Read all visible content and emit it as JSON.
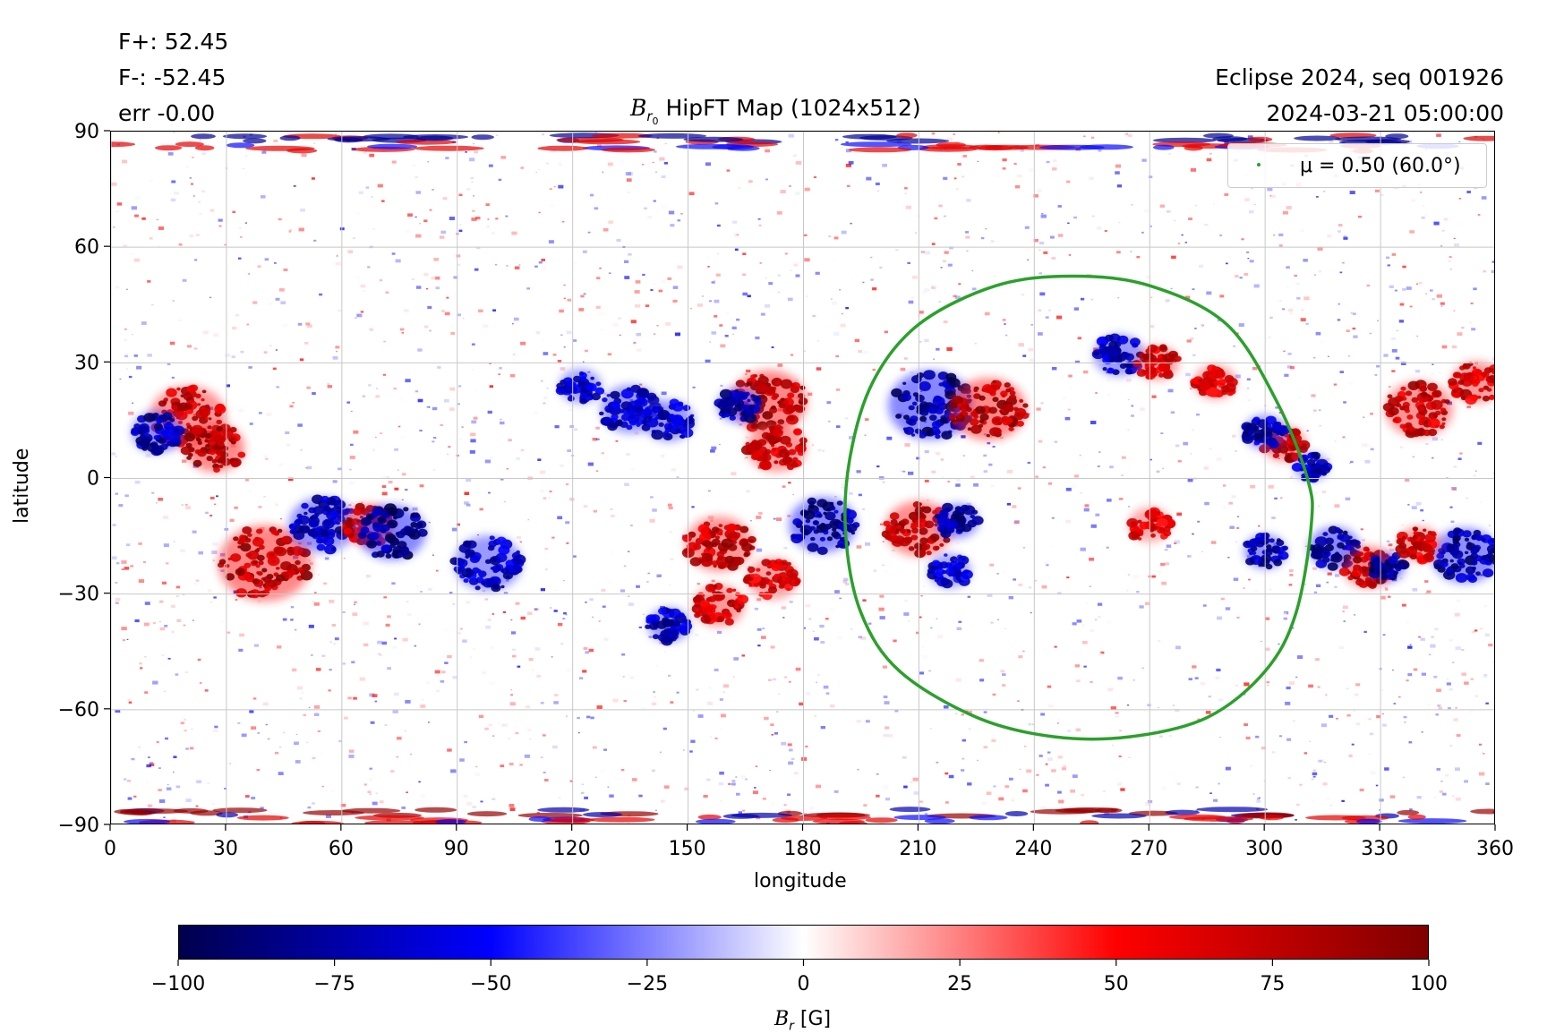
{
  "header": {
    "flux_pos": "F+: 52.45",
    "flux_neg": "F-: -52.45",
    "flux_err": "err -0.00",
    "title_prefix": "B",
    "title_sub": "r",
    "title_subsub": "0",
    "title_rest": " HipFT Map (1024x512)",
    "run_info": "Eclipse 2024, seq 001926",
    "timestamp": "2024-03-21 05:00:00"
  },
  "legend": {
    "label": "μ = 0.50 (60.0°)",
    "color": "#2ca02c"
  },
  "colors": {
    "positive": "#cc0000",
    "negative": "#0000b0",
    "contour": "#2ca02c",
    "grid": "#c8c8c8"
  },
  "chart_data": {
    "type": "heatmap",
    "title": "B_r0 HipFT Map (1024x512)",
    "xlabel": "longitude",
    "ylabel": "latitude",
    "xlim": [
      0,
      360
    ],
    "ylim": [
      -90,
      90
    ],
    "x_ticks": [
      0,
      30,
      60,
      90,
      120,
      150,
      180,
      210,
      240,
      270,
      300,
      330,
      360
    ],
    "y_ticks": [
      -90,
      -60,
      -30,
      0,
      30,
      60,
      90
    ],
    "y_tick_labels": [
      "−90",
      "−60",
      "−30",
      "0",
      "30",
      "60",
      "90"
    ],
    "grid": true,
    "legend_position": "top-right",
    "colorbar": {
      "label_main": "B",
      "label_sub": "r",
      "label_unit": " [G]",
      "range": [
        -100,
        100
      ],
      "ticks": [
        -100,
        -75,
        -50,
        -25,
        0,
        25,
        50,
        75,
        100
      ],
      "tick_labels": [
        "−100",
        "−75",
        "−50",
        "−25",
        "0",
        "25",
        "50",
        "75",
        "100"
      ],
      "colormap": "seismic"
    },
    "contour": {
      "name": "μ = 0.50 (60.0°)",
      "points": [
        [
          250,
          52.5
        ],
        [
          270,
          50
        ],
        [
          290,
          40
        ],
        [
          303,
          20
        ],
        [
          311,
          0
        ],
        [
          312,
          -12
        ],
        [
          308,
          -35
        ],
        [
          300,
          -50
        ],
        [
          285,
          -62
        ],
        [
          265,
          -67
        ],
        [
          245,
          -67
        ],
        [
          225,
          -62
        ],
        [
          205,
          -50
        ],
        [
          195,
          -35
        ],
        [
          191,
          -15
        ],
        [
          192,
          5
        ],
        [
          198,
          25
        ],
        [
          210,
          40
        ],
        [
          230,
          50
        ]
      ],
      "closed": true
    },
    "active_regions": [
      {
        "lon": 213,
        "lat": 19,
        "flux": -95,
        "size": 10
      },
      {
        "lon": 228,
        "lat": 18,
        "flux": 95,
        "size": 9
      },
      {
        "lon": 210,
        "lat": -13,
        "flux": 90,
        "size": 8
      },
      {
        "lon": 220,
        "lat": -11,
        "flux": -90,
        "size": 5
      },
      {
        "lon": 171,
        "lat": 20,
        "flux": 95,
        "size": 9
      },
      {
        "lon": 163,
        "lat": 19,
        "flux": -85,
        "size": 5
      },
      {
        "lon": 173,
        "lat": 8,
        "flux": 80,
        "size": 7
      },
      {
        "lon": 135,
        "lat": 18,
        "flux": -80,
        "size": 7
      },
      {
        "lon": 145,
        "lat": 15,
        "flux": -80,
        "size": 6
      },
      {
        "lon": 122,
        "lat": 24,
        "flux": -75,
        "size": 5
      },
      {
        "lon": 20,
        "lat": 16,
        "flux": 85,
        "size": 9
      },
      {
        "lon": 27,
        "lat": 8,
        "flux": 95,
        "size": 7
      },
      {
        "lon": 12,
        "lat": 12,
        "flux": -85,
        "size": 6
      },
      {
        "lon": 40,
        "lat": -22,
        "flux": 95,
        "size": 11
      },
      {
        "lon": 55,
        "lat": -12,
        "flux": -85,
        "size": 8
      },
      {
        "lon": 67,
        "lat": -12,
        "flux": 85,
        "size": 6
      },
      {
        "lon": 73,
        "lat": -14,
        "flux": -95,
        "size": 8
      },
      {
        "lon": 98,
        "lat": -22,
        "flux": -80,
        "size": 8
      },
      {
        "lon": 158,
        "lat": -17,
        "flux": 85,
        "size": 8
      },
      {
        "lon": 185,
        "lat": -12,
        "flux": -95,
        "size": 8
      },
      {
        "lon": 158,
        "lat": -33,
        "flux": 80,
        "size": 6
      },
      {
        "lon": 145,
        "lat": -38,
        "flux": -80,
        "size": 5
      },
      {
        "lon": 172,
        "lat": -26,
        "flux": 75,
        "size": 6
      },
      {
        "lon": 305,
        "lat": 9,
        "flux": 90,
        "size": 5
      },
      {
        "lon": 300,
        "lat": 12,
        "flux": -85,
        "size": 5
      },
      {
        "lon": 312,
        "lat": 3,
        "flux": -80,
        "size": 4
      },
      {
        "lon": 318,
        "lat": -18,
        "flux": -95,
        "size": 6
      },
      {
        "lon": 327,
        "lat": -23,
        "flux": 95,
        "size": 6
      },
      {
        "lon": 300,
        "lat": -19,
        "flux": -85,
        "size": 5
      },
      {
        "lon": 332,
        "lat": -23,
        "flux": -95,
        "size": 4
      },
      {
        "lon": 340,
        "lat": 18,
        "flux": 85,
        "size": 8
      },
      {
        "lon": 355,
        "lat": 25,
        "flux": 80,
        "size": 6
      },
      {
        "lon": 352,
        "lat": -20,
        "flux": -90,
        "size": 8
      },
      {
        "lon": 340,
        "lat": -17,
        "flux": 80,
        "size": 5
      },
      {
        "lon": 262,
        "lat": 32,
        "flux": -80,
        "size": 6
      },
      {
        "lon": 272,
        "lat": 30,
        "flux": 80,
        "size": 5
      },
      {
        "lon": 287,
        "lat": 25,
        "flux": 75,
        "size": 5
      },
      {
        "lon": 218,
        "lat": -24,
        "flux": -75,
        "size": 5
      },
      {
        "lon": 270,
        "lat": -12,
        "flux": 70,
        "size": 5
      }
    ]
  }
}
